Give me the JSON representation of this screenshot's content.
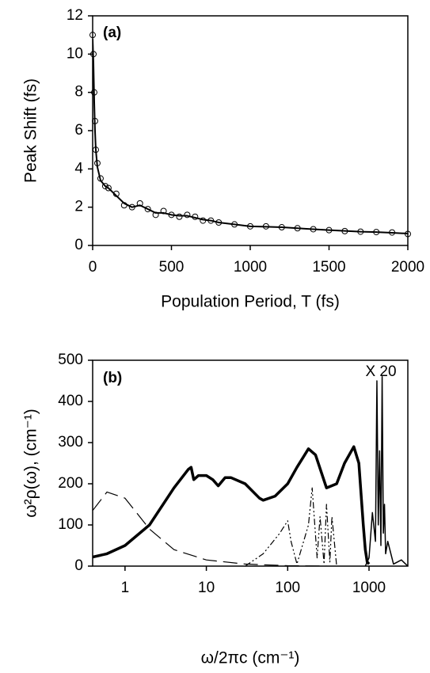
{
  "chart_data": [
    {
      "type": "scatter",
      "panel_label": "(a)",
      "x_label": "Population Period, T (fs)",
      "y_label": "Peak Shift (fs)",
      "x": [
        0,
        5,
        10,
        15,
        20,
        30,
        50,
        80,
        100,
        150,
        200,
        250,
        300,
        350,
        400,
        450,
        500,
        550,
        600,
        650,
        700,
        750,
        800,
        900,
        1000,
        1100,
        1200,
        1300,
        1400,
        1500,
        1600,
        1700,
        1800,
        1900,
        2000
      ],
      "series": [
        {
          "marker": "circle",
          "color": "#000000",
          "values": [
            11,
            10,
            8,
            6.5,
            5,
            4.3,
            3.5,
            3.1,
            3,
            2.7,
            2.1,
            2,
            2.2,
            1.9,
            1.6,
            1.8,
            1.6,
            1.5,
            1.6,
            1.5,
            1.3,
            1.3,
            1.2,
            1.1,
            1,
            1,
            0.95,
            0.9,
            0.85,
            0.8,
            0.75,
            0.72,
            0.7,
            0.68,
            0.6
          ]
        },
        {
          "color": "#000000",
          "linewidth": 2,
          "values": [
            10.8,
            9.5,
            7.5,
            6,
            5,
            4.1,
            3.4,
            3.1,
            3,
            2.6,
            2.2,
            2,
            2.1,
            1.9,
            1.7,
            1.7,
            1.6,
            1.55,
            1.55,
            1.45,
            1.35,
            1.3,
            1.2,
            1.1,
            1,
            0.98,
            0.95,
            0.9,
            0.85,
            0.8,
            0.76,
            0.72,
            0.7,
            0.66,
            0.62
          ]
        }
      ],
      "xlim": [
        0,
        2000
      ],
      "ylim": [
        0,
        12
      ],
      "xticks": [
        0,
        500,
        1000,
        1500,
        2000
      ],
      "yticks": [
        0,
        2,
        4,
        6,
        8,
        10,
        12
      ]
    },
    {
      "type": "line",
      "panel_label": "(b)",
      "annotation": "X 20",
      "x_label": "ω/2πc (cm⁻¹)",
      "y_label": "ω²ρ(ω), (cm⁻¹)",
      "xscale": "log",
      "series": [
        {
          "style": "solid",
          "linewidth": 3.5,
          "color": "#000000",
          "x": [
            0.4,
            0.6,
            1,
            2,
            4,
            6,
            6.5,
            7,
            8,
            10,
            12,
            14,
            17,
            20,
            30,
            45,
            50,
            70,
            100,
            130,
            180,
            220,
            300,
            400,
            500,
            650,
            750,
            850,
            900,
            950,
            1000
          ],
          "values": [
            22,
            30,
            50,
            100,
            190,
            235,
            240,
            210,
            220,
            220,
            210,
            195,
            215,
            215,
            200,
            165,
            160,
            170,
            200,
            240,
            285,
            270,
            190,
            200,
            250,
            290,
            250,
            100,
            40,
            10,
            5
          ]
        },
        {
          "style": "long-dash",
          "linewidth": 1.2,
          "color": "#000000",
          "x": [
            0.4,
            0.6,
            1,
            2,
            4,
            10,
            30,
            100,
            300
          ],
          "values": [
            135,
            180,
            165,
            90,
            40,
            15,
            5,
            1,
            0
          ]
        },
        {
          "style": "dash-dot",
          "linewidth": 1.2,
          "color": "#000000",
          "x": [
            30,
            50,
            80,
            100,
            110,
            130,
            180,
            200,
            230,
            250,
            280,
            300,
            330,
            350,
            400
          ],
          "values": [
            0,
            30,
            80,
            110,
            60,
            5,
            100,
            190,
            20,
            120,
            5,
            150,
            10,
            120,
            0
          ]
        },
        {
          "style": "solid",
          "linewidth": 1.5,
          "color": "#000000",
          "x": [
            900,
            1000,
            1100,
            1200,
            1250,
            1300,
            1350,
            1400,
            1450,
            1500,
            1550,
            1600,
            1700,
            2000,
            2500,
            3000
          ],
          "values": [
            0,
            20,
            130,
            60,
            450,
            100,
            280,
            50,
            460,
            80,
            150,
            30,
            60,
            5,
            15,
            0
          ]
        }
      ],
      "xlim": [
        0.4,
        3000
      ],
      "ylim": [
        0,
        500
      ],
      "xticks": [
        1,
        10,
        100,
        1000
      ],
      "yticks": [
        0,
        100,
        200,
        300,
        400,
        500
      ]
    }
  ]
}
